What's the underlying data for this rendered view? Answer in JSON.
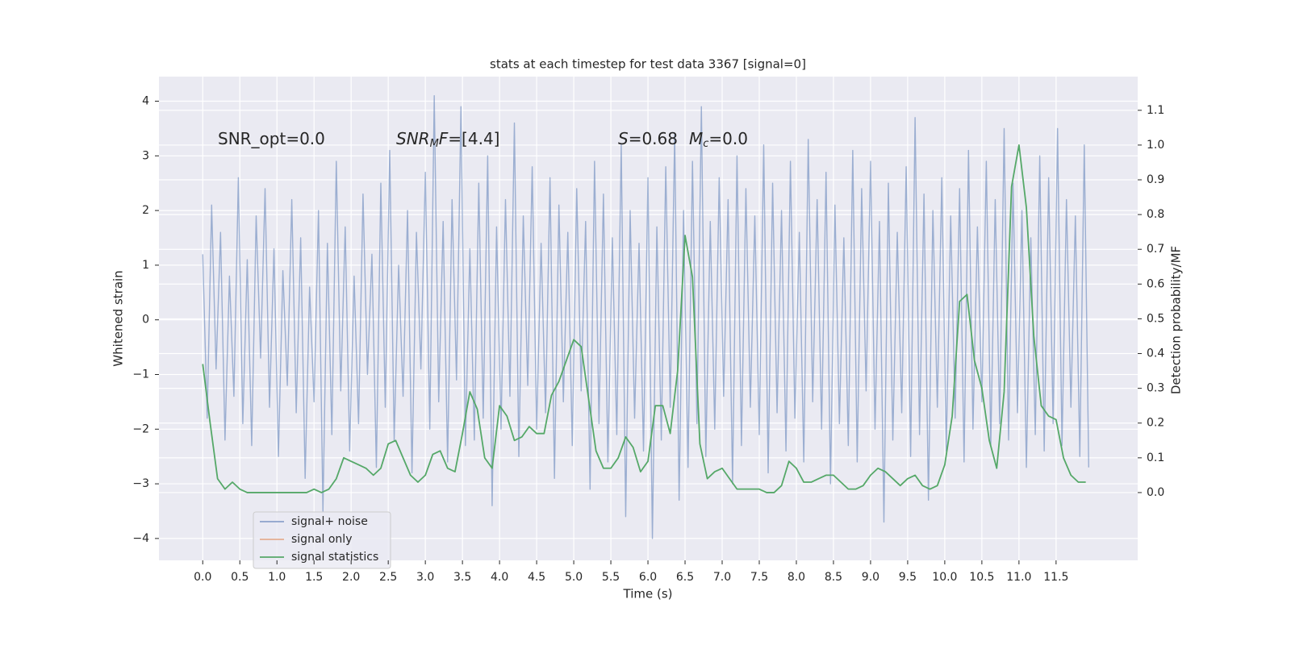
{
  "chart_data": {
    "type": "line",
    "title": "stats at each timestep for test data 3367 [signal=0]",
    "xlabel": "Time (s)",
    "ylabel": "Whitened strain",
    "y2label": "Detection probability/MF",
    "annotations": [
      [
        "SNR_opt=0.0"
      ],
      [
        "SNR",
        "M",
        "F",
        "=[4.4]"
      ],
      [
        "S",
        "=0.68",
        "M",
        "c",
        "=0.0"
      ]
    ],
    "xlim": [
      -0.59,
      12.6
    ],
    "ylim": [
      -4.4,
      4.45
    ],
    "y2lim": [
      -0.195,
      1.197
    ],
    "xticks": [
      {
        "value": 0,
        "label": "0.0"
      },
      0.5,
      {
        "value": 1,
        "label": "1.0"
      },
      1.5,
      {
        "value": 2,
        "label": "2.0"
      },
      2.5,
      {
        "value": 3,
        "label": "3.0"
      },
      3.5,
      {
        "value": 4,
        "label": "4.0"
      },
      4.5,
      {
        "value": 5,
        "label": "5.0"
      },
      5.5,
      {
        "value": 6,
        "label": "6.0"
      },
      6.5,
      {
        "value": 7,
        "label": "7.0"
      },
      7.5,
      {
        "value": 8,
        "label": "8.0"
      },
      8.5,
      {
        "value": 9,
        "label": "9.0"
      },
      9.5,
      {
        "value": 10,
        "label": "10.0"
      },
      10.5,
      {
        "value": 11,
        "label": "11.0"
      },
      11.5
    ],
    "yticks": [
      {
        "value": -4,
        "label": "−4"
      },
      {
        "value": -3,
        "label": "−3"
      },
      {
        "value": -2,
        "label": "−2"
      },
      {
        "value": -1,
        "label": "−1"
      },
      0,
      1,
      2,
      3,
      4
    ],
    "y2ticks": [
      {
        "value": 0,
        "label": "0.0"
      },
      0.1,
      0.2,
      0.3,
      0.4,
      0.5,
      0.6,
      0.7,
      0.8,
      0.9,
      {
        "value": 1,
        "label": "1.0"
      },
      1.1
    ],
    "grid": true,
    "legend": "lower left",
    "series": [
      {
        "name": "signal+ noise",
        "color": "#4c72b0",
        "x": [
          0,
          0.06,
          0.12,
          0.18,
          0.24,
          0.3,
          0.36,
          0.42,
          0.48,
          0.54,
          0.6,
          0.66,
          0.72,
          0.78,
          0.84,
          0.9,
          0.96,
          1.02,
          1.08,
          1.14,
          1.2,
          1.26,
          1.32,
          1.38,
          1.44,
          1.5,
          1.56,
          1.62,
          1.68,
          1.74,
          1.8,
          1.86,
          1.92,
          1.98,
          2.04,
          2.1,
          2.16,
          2.22,
          2.28,
          2.34,
          2.4,
          2.46,
          2.52,
          2.58,
          2.64,
          2.7,
          2.76,
          2.82,
          2.88,
          2.94,
          3,
          3.06,
          3.12,
          3.18,
          3.24,
          3.3,
          3.36,
          3.42,
          3.48,
          3.54,
          3.6,
          3.66,
          3.72,
          3.78,
          3.84,
          3.9,
          3.96,
          4.02,
          4.08,
          4.14,
          4.2,
          4.26,
          4.32,
          4.38,
          4.44,
          4.5,
          4.56,
          4.62,
          4.68,
          4.74,
          4.8,
          4.86,
          4.92,
          4.98,
          5.04,
          5.1,
          5.16,
          5.22,
          5.28,
          5.34,
          5.4,
          5.46,
          5.52,
          5.58,
          5.64,
          5.7,
          5.76,
          5.82,
          5.88,
          5.94,
          6,
          6.06,
          6.12,
          6.18,
          6.24,
          6.3,
          6.36,
          6.42,
          6.48,
          6.54,
          6.6,
          6.66,
          6.72,
          6.78,
          6.84,
          6.9,
          6.96,
          7.02,
          7.08,
          7.14,
          7.2,
          7.26,
          7.32,
          7.38,
          7.44,
          7.5,
          7.56,
          7.62,
          7.68,
          7.74,
          7.8,
          7.86,
          7.92,
          7.98,
          8.04,
          8.1,
          8.16,
          8.22,
          8.28,
          8.34,
          8.4,
          8.46,
          8.52,
          8.58,
          8.64,
          8.7,
          8.76,
          8.82,
          8.88,
          8.94,
          9,
          9.06,
          9.12,
          9.18,
          9.24,
          9.3,
          9.36,
          9.42,
          9.48,
          9.54,
          9.6,
          9.66,
          9.72,
          9.78,
          9.84,
          9.9,
          9.96,
          10.02,
          10.08,
          10.14,
          10.2,
          10.26,
          10.32,
          10.38,
          10.44,
          10.5,
          10.56,
          10.62,
          10.68,
          10.74,
          10.8,
          10.86,
          10.92,
          10.98,
          11.04,
          11.1,
          11.16,
          11.22,
          11.28,
          11.34,
          11.4,
          11.46,
          11.52,
          11.58,
          11.64,
          11.7,
          11.76,
          11.82,
          11.88,
          11.94
        ],
        "values": [
          1.2,
          -1.8,
          2.1,
          -0.9,
          1.6,
          -2.2,
          0.8,
          -1.4,
          2.6,
          -1.9,
          1.1,
          -2.3,
          1.9,
          -0.7,
          2.4,
          -1.6,
          1.3,
          -2.5,
          0.9,
          -1.2,
          2.2,
          -1.7,
          1.5,
          -2.9,
          0.6,
          -1.5,
          2.0,
          -3.5,
          1.4,
          -2.1,
          2.9,
          -1.3,
          1.7,
          -2.4,
          0.8,
          -1.9,
          2.3,
          -1.0,
          1.2,
          -2.7,
          2.5,
          -1.6,
          3.1,
          -2.2,
          1.0,
          -1.4,
          2.0,
          -2.8,
          1.6,
          -0.9,
          2.7,
          -2.0,
          4.1,
          -1.5,
          1.8,
          -2.6,
          2.2,
          -1.1,
          3.9,
          -2.3,
          1.3,
          -2.2,
          2.5,
          -1.8,
          3.0,
          -3.4,
          1.7,
          -2.0,
          2.2,
          -1.4,
          3.6,
          -2.5,
          1.9,
          -1.2,
          2.8,
          -2.0,
          1.4,
          -1.7,
          2.6,
          -2.9,
          2.1,
          -1.5,
          1.6,
          -2.3,
          2.4,
          -1.3,
          1.8,
          -3.1,
          2.9,
          -1.9,
          2.3,
          -2.6,
          1.5,
          -2.1,
          3.2,
          -3.6,
          2.0,
          -1.8,
          1.4,
          -2.4,
          2.6,
          -4.0,
          1.7,
          -2.2,
          2.8,
          -1.6,
          3.4,
          -3.3,
          2.0,
          -2.7,
          2.9,
          -1.9,
          3.9,
          -2.5,
          1.8,
          -2.0,
          2.6,
          -1.4,
          2.2,
          -3.0,
          3.0,
          -2.3,
          2.4,
          -1.6,
          1.9,
          -2.1,
          3.2,
          -2.8,
          2.5,
          -1.7,
          2.0,
          -2.4,
          2.9,
          -1.8,
          1.6,
          -2.6,
          3.3,
          -1.5,
          2.2,
          -2.0,
          2.7,
          -3.0,
          2.1,
          -1.9,
          1.5,
          -2.3,
          3.1,
          -2.6,
          2.4,
          -1.3,
          2.9,
          -2.0,
          1.8,
          -3.7,
          2.5,
          -2.2,
          1.6,
          -1.7,
          2.8,
          -2.5,
          3.7,
          -2.1,
          2.3,
          -3.3,
          2.0,
          -1.6,
          2.6,
          -2.4,
          1.9,
          -1.8,
          2.4,
          -2.6,
          3.1,
          -2.0,
          1.7,
          -1.5,
          2.9,
          -2.3,
          2.2,
          -1.9,
          3.5,
          -2.2,
          2.5,
          -1.7,
          2.0,
          -2.7,
          1.5,
          -2.1,
          3.0,
          -2.4,
          2.6,
          -1.9,
          3.5,
          -2.3,
          2.2,
          -1.6,
          1.9,
          -2.5,
          3.2,
          -2.7
        ]
      },
      {
        "name": "signal only",
        "color": "#dd8452",
        "x": [],
        "values": []
      },
      {
        "name": "signal statistics",
        "color": "#55a868",
        "axis": "y2",
        "x": [
          0,
          0.1,
          0.2,
          0.3,
          0.4,
          0.5,
          0.6,
          0.7,
          0.8,
          0.9,
          1,
          1.1,
          1.2,
          1.3,
          1.4,
          1.5,
          1.6,
          1.7,
          1.8,
          1.9,
          2,
          2.1,
          2.2,
          2.3,
          2.4,
          2.5,
          2.6,
          2.7,
          2.8,
          2.9,
          3,
          3.1,
          3.2,
          3.3,
          3.4,
          3.5,
          3.6,
          3.7,
          3.8,
          3.9,
          4,
          4.1,
          4.2,
          4.3,
          4.4,
          4.5,
          4.6,
          4.7,
          4.8,
          4.9,
          5,
          5.1,
          5.2,
          5.3,
          5.4,
          5.5,
          5.6,
          5.7,
          5.8,
          5.9,
          6,
          6.1,
          6.2,
          6.3,
          6.4,
          6.5,
          6.6,
          6.7,
          6.8,
          6.9,
          7,
          7.1,
          7.2,
          7.3,
          7.4,
          7.5,
          7.6,
          7.7,
          7.8,
          7.9,
          8,
          8.1,
          8.2,
          8.3,
          8.4,
          8.5,
          8.6,
          8.7,
          8.8,
          8.9,
          9,
          9.1,
          9.2,
          9.3,
          9.4,
          9.5,
          9.6,
          9.7,
          9.8,
          9.9,
          10,
          10.1,
          10.2,
          10.3,
          10.4,
          10.5,
          10.6,
          10.7,
          10.8,
          10.9,
          11,
          11.1,
          11.2,
          11.3,
          11.4,
          11.5,
          11.6,
          11.7,
          11.8,
          11.9
        ],
        "values": [
          0.37,
          0.2,
          0.04,
          0.01,
          0.03,
          0.01,
          0,
          0,
          0,
          0,
          0,
          0,
          0,
          0,
          0,
          0.01,
          0,
          0.01,
          0.04,
          0.1,
          0.09,
          0.08,
          0.07,
          0.05,
          0.07,
          0.14,
          0.15,
          0.1,
          0.05,
          0.03,
          0.05,
          0.11,
          0.12,
          0.07,
          0.06,
          0.17,
          0.29,
          0.24,
          0.1,
          0.07,
          0.25,
          0.22,
          0.15,
          0.16,
          0.19,
          0.17,
          0.17,
          0.28,
          0.32,
          0.38,
          0.44,
          0.42,
          0.27,
          0.12,
          0.07,
          0.07,
          0.1,
          0.16,
          0.13,
          0.06,
          0.09,
          0.25,
          0.25,
          0.17,
          0.35,
          0.74,
          0.62,
          0.14,
          0.04,
          0.06,
          0.07,
          0.04,
          0.01,
          0.01,
          0.01,
          0.01,
          0,
          0,
          0.02,
          0.09,
          0.07,
          0.03,
          0.03,
          0.04,
          0.05,
          0.05,
          0.03,
          0.01,
          0.01,
          0.02,
          0.05,
          0.07,
          0.06,
          0.04,
          0.02,
          0.04,
          0.05,
          0.02,
          0.01,
          0.02,
          0.08,
          0.22,
          0.55,
          0.57,
          0.38,
          0.3,
          0.15,
          0.07,
          0.29,
          0.88,
          1.0,
          0.82,
          0.45,
          0.25,
          0.22,
          0.21,
          0.1,
          0.05,
          0.03,
          0.03
        ]
      }
    ]
  }
}
